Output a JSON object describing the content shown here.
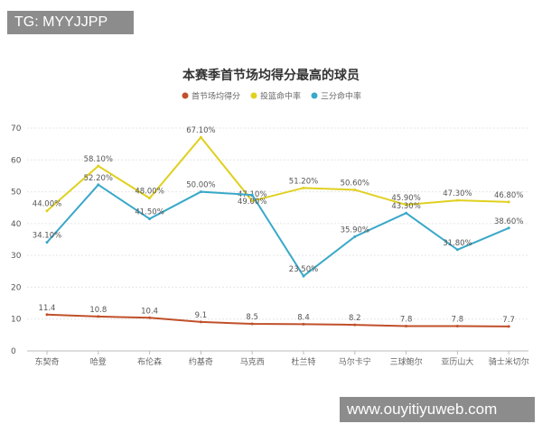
{
  "watermarks": {
    "top": "TG: MYYJJPP",
    "bottom": "www.ouyitiyuweb.com"
  },
  "chart_data": {
    "type": "line",
    "title": "本赛季首节场均得分最高的球员",
    "categories": [
      "东契奇",
      "哈登",
      "布伦森",
      "约基奇",
      "马克西",
      "杜兰特",
      "马尔卡宁",
      "三球鲍尔",
      "亚历山大",
      "骑士米切尔"
    ],
    "series": [
      {
        "name": "首节场均得分",
        "color": "#c0502a",
        "values": [
          11.4,
          10.8,
          10.4,
          9.1,
          8.5,
          8.4,
          8.2,
          7.8,
          7.8,
          7.7
        ],
        "labels": [
          "11.4",
          "10.8",
          "10.4",
          "9.1",
          "8.5",
          "8.4",
          "8.2",
          "7.8",
          "7.8",
          "7.7"
        ]
      },
      {
        "name": "投篮命中率",
        "color": "#e0d020",
        "values": [
          44.0,
          58.1,
          48.0,
          67.1,
          47.1,
          51.2,
          50.6,
          45.9,
          47.3,
          46.8
        ],
        "labels": [
          "44.00%",
          "58.10%",
          "48.00%",
          "67.10%",
          "47.10%",
          "51.20%",
          "50.60%",
          "45.90%",
          "47.30%",
          "46.80%"
        ]
      },
      {
        "name": "三分命中率",
        "color": "#3aa8c8",
        "values": [
          34.1,
          52.2,
          41.5,
          50.0,
          49.0,
          23.5,
          35.9,
          43.3,
          31.8,
          38.6
        ],
        "labels": [
          "34.10%",
          "52.20%",
          "41.50%",
          "50.00%",
          "49.00%",
          "23.50%",
          "35.90%",
          "43.30%",
          "31.80%",
          "38.60%"
        ]
      }
    ],
    "yticks": [
      0,
      10,
      20,
      30,
      40,
      50,
      60,
      70
    ],
    "ylim": [
      0,
      70
    ],
    "grid": true,
    "legend": "top"
  }
}
